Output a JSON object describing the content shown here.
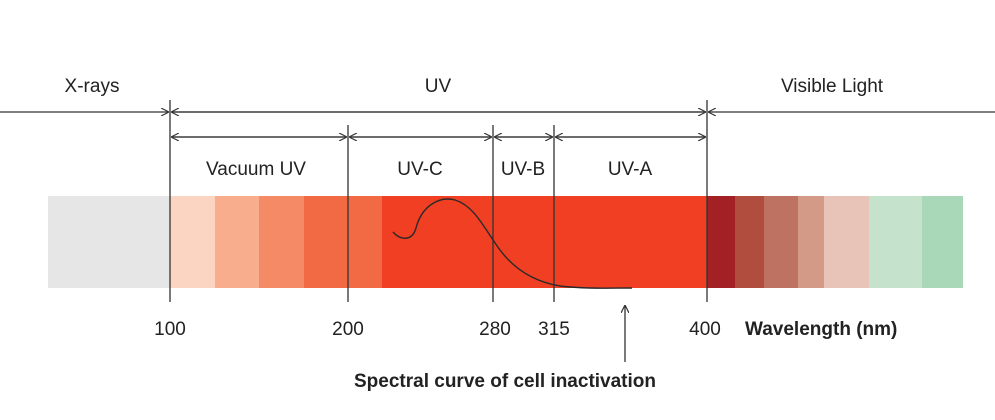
{
  "regions": {
    "xrays": "X-rays",
    "uv": "UV",
    "visible": "Visible Light"
  },
  "subbands": {
    "vacuum": "Vacuum UV",
    "uvc": "UV-C",
    "uvb": "UV-B",
    "uva": "UV-A"
  },
  "ticks": [
    "100",
    "200",
    "280",
    "315",
    "400"
  ],
  "axis_label": "Wavelength (nm)",
  "caption": "Spectral curve of cell inactivation",
  "colors": {
    "xray": "#e6e6e6",
    "uv": [
      "#fcd5c2",
      "#f8ad8c",
      "#f48b66",
      "#f26a43",
      "#f03f22"
    ],
    "visible": [
      "#a32124",
      "#b04d3e",
      "#be7261",
      "#d39a88",
      "#e8c4b8",
      "#c4e2cc",
      "#a8d8b8"
    ]
  }
}
